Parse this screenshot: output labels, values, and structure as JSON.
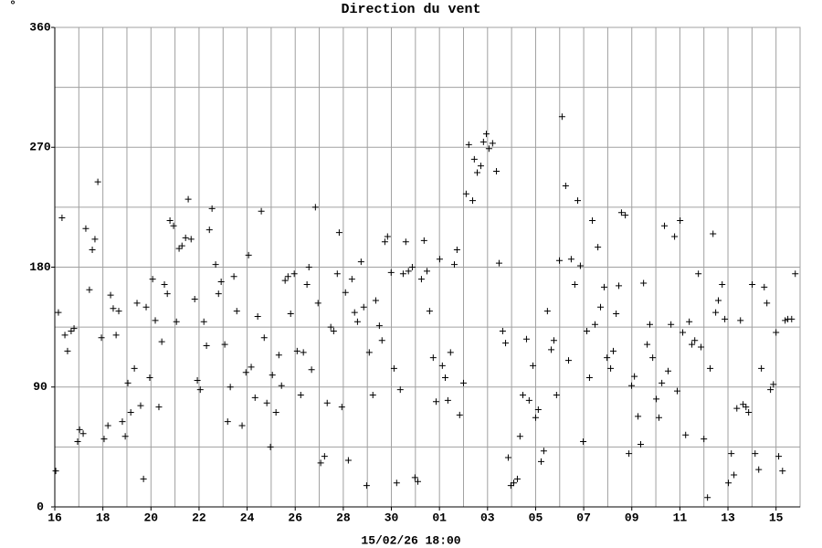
{
  "chart_data": {
    "type": "scatter",
    "title": "Direction du vent",
    "ylabel": "°",
    "xlabel": "15/02/26 18:00",
    "color": "#000000",
    "grid": true,
    "xlim": [
      0,
      31
    ],
    "ylim": [
      0,
      360
    ],
    "yticks": [
      0,
      90,
      180,
      270,
      360
    ],
    "minor_yticks": [
      45,
      135,
      225,
      315
    ],
    "xticks": [
      {
        "value": 0,
        "label": "16"
      },
      {
        "value": 2,
        "label": "18"
      },
      {
        "value": 4,
        "label": "20"
      },
      {
        "value": 6,
        "label": "22"
      },
      {
        "value": 8,
        "label": "24"
      },
      {
        "value": 10,
        "label": "26"
      },
      {
        "value": 12,
        "label": "28"
      },
      {
        "value": 14,
        "label": "30"
      },
      {
        "value": 16,
        "label": "01"
      },
      {
        "value": 18,
        "label": "03"
      },
      {
        "value": 20,
        "label": "05"
      },
      {
        "value": 22,
        "label": "07"
      },
      {
        "value": 24,
        "label": "09"
      },
      {
        "value": 26,
        "label": "11"
      },
      {
        "value": 28,
        "label": "13"
      },
      {
        "value": 30,
        "label": "15"
      }
    ],
    "minor_xticks": [
      1,
      3,
      5,
      7,
      9,
      11,
      13,
      15,
      17,
      19,
      21,
      23,
      25,
      27,
      29
    ],
    "x": [
      0.04,
      0.15,
      0.3,
      0.42,
      0.53,
      0.68,
      0.8,
      0.95,
      1.03,
      1.18,
      1.29,
      1.44,
      1.56,
      1.67,
      1.79,
      1.94,
      2.05,
      2.21,
      2.32,
      2.43,
      2.55,
      2.66,
      2.81,
      2.93,
      3.04,
      3.16,
      3.31,
      3.42,
      3.57,
      3.69,
      3.8,
      3.95,
      4.07,
      4.18,
      4.33,
      4.45,
      4.56,
      4.68,
      4.79,
      4.94,
      5.06,
      5.17,
      5.29,
      5.44,
      5.55,
      5.67,
      5.82,
      5.93,
      6.05,
      6.2,
      6.31,
      6.43,
      6.54,
      6.69,
      6.81,
      6.92,
      7.07,
      7.19,
      7.3,
      7.45,
      7.57,
      7.79,
      7.95,
      8.06,
      8.17,
      8.33,
      8.44,
      8.59,
      8.71,
      8.82,
      8.97,
      9.05,
      9.2,
      9.32,
      9.43,
      9.58,
      9.7,
      9.81,
      9.96,
      10.08,
      10.23,
      10.34,
      10.49,
      10.57,
      10.68,
      10.84,
      10.95,
      11.06,
      11.22,
      11.33,
      11.48,
      11.6,
      11.75,
      11.83,
      11.94,
      12.09,
      12.21,
      12.36,
      12.47,
      12.59,
      12.74,
      12.85,
      12.97,
      13.08,
      13.23,
      13.35,
      13.5,
      13.61,
      13.73,
      13.84,
      13.99,
      14.11,
      14.22,
      14.37,
      14.49,
      14.6,
      14.71,
      14.87,
      14.98,
      15.1,
      15.25,
      15.36,
      15.48,
      15.59,
      15.74,
      15.86,
      16.01,
      16.12,
      16.24,
      16.35,
      16.46,
      16.62,
      16.73,
      16.84,
      17.0,
      17.11,
      17.22,
      17.38,
      17.45,
      17.57,
      17.72,
      17.83,
      17.95,
      18.06,
      18.21,
      18.37,
      18.48,
      18.63,
      18.75,
      18.86,
      18.97,
      19.09,
      19.24,
      19.35,
      19.47,
      19.62,
      19.73,
      19.89,
      20.0,
      20.11,
      20.23,
      20.34,
      20.49,
      20.65,
      20.76,
      20.87,
      20.99,
      21.1,
      21.25,
      21.37,
      21.48,
      21.63,
      21.75,
      21.86,
      21.98,
      22.13,
      22.24,
      22.36,
      22.47,
      22.59,
      22.7,
      22.85,
      22.97,
      23.12,
      23.23,
      23.35,
      23.46,
      23.57,
      23.73,
      23.88,
      23.99,
      24.11,
      24.26,
      24.37,
      24.49,
      24.64,
      24.75,
      24.87,
      25.02,
      25.13,
      25.25,
      25.36,
      25.51,
      25.63,
      25.78,
      25.89,
      26.01,
      26.12,
      26.24,
      26.39,
      26.5,
      26.62,
      26.77,
      26.88,
      27.0,
      27.15,
      27.26,
      27.38,
      27.49,
      27.6,
      27.76,
      27.87,
      28.02,
      28.14,
      28.25,
      28.37,
      28.52,
      28.63,
      28.75,
      28.86,
      29.01,
      29.13,
      29.28,
      29.39,
      29.51,
      29.62,
      29.77,
      29.89,
      30.0,
      30.11,
      30.27,
      30.38,
      30.49,
      30.65,
      30.8
    ],
    "values": [
      27,
      146,
      217,
      129,
      117,
      132,
      134,
      49,
      58,
      55,
      209,
      163,
      193,
      201,
      244,
      127,
      51,
      61,
      159,
      149,
      129,
      147,
      64,
      53,
      93,
      71,
      104,
      153,
      76,
      21,
      150,
      97,
      171,
      140,
      75,
      124,
      167,
      160,
      215,
      211,
      139,
      194,
      196,
      202,
      231,
      201,
      156,
      95,
      88,
      139,
      121,
      208,
      224,
      182,
      160,
      169,
      122,
      64,
      90,
      173,
      147,
      61,
      101,
      189,
      105,
      82,
      143,
      222,
      127,
      78,
      45,
      99,
      71,
      114,
      91,
      170,
      173,
      145,
      175,
      117,
      84,
      116,
      167,
      180,
      103,
      225,
      153,
      33,
      38,
      78,
      135,
      132,
      175,
      206,
      75,
      161,
      35,
      171,
      146,
      139,
      184,
      150,
      16,
      116,
      84,
      155,
      136,
      125,
      199,
      203,
      176,
      104,
      18,
      88,
      175,
      199,
      177,
      180,
      22,
      19,
      171,
      200,
      177,
      147,
      112,
      79,
      186,
      106,
      97,
      80,
      116,
      182,
      193,
      69,
      93,
      235,
      272,
      230,
      261,
      251,
      256,
      274,
      280,
      269,
      273,
      252,
      183,
      132,
      123,
      37,
      16,
      18,
      21,
      53,
      84,
      126,
      80,
      106,
      67,
      73,
      34,
      42,
      147,
      118,
      125,
      84,
      185,
      293,
      241,
      110,
      186,
      167,
      230,
      181,
      49,
      132,
      97,
      215,
      137,
      195,
      150,
      165,
      112,
      104,
      117,
      145,
      166,
      221,
      219,
      40,
      91,
      98,
      68,
      47,
      168,
      122,
      137,
      112,
      81,
      67,
      93,
      211,
      102,
      137,
      203,
      87,
      215,
      131,
      54,
      139,
      122,
      125,
      175,
      120,
      51,
      7,
      104,
      205,
      146,
      155,
      167,
      141,
      18,
      40,
      24,
      74,
      140,
      77,
      75,
      71,
      167,
      40,
      28,
      104,
      165,
      153,
      88,
      92,
      131,
      38,
      27,
      140,
      141,
      141,
      175
    ]
  }
}
